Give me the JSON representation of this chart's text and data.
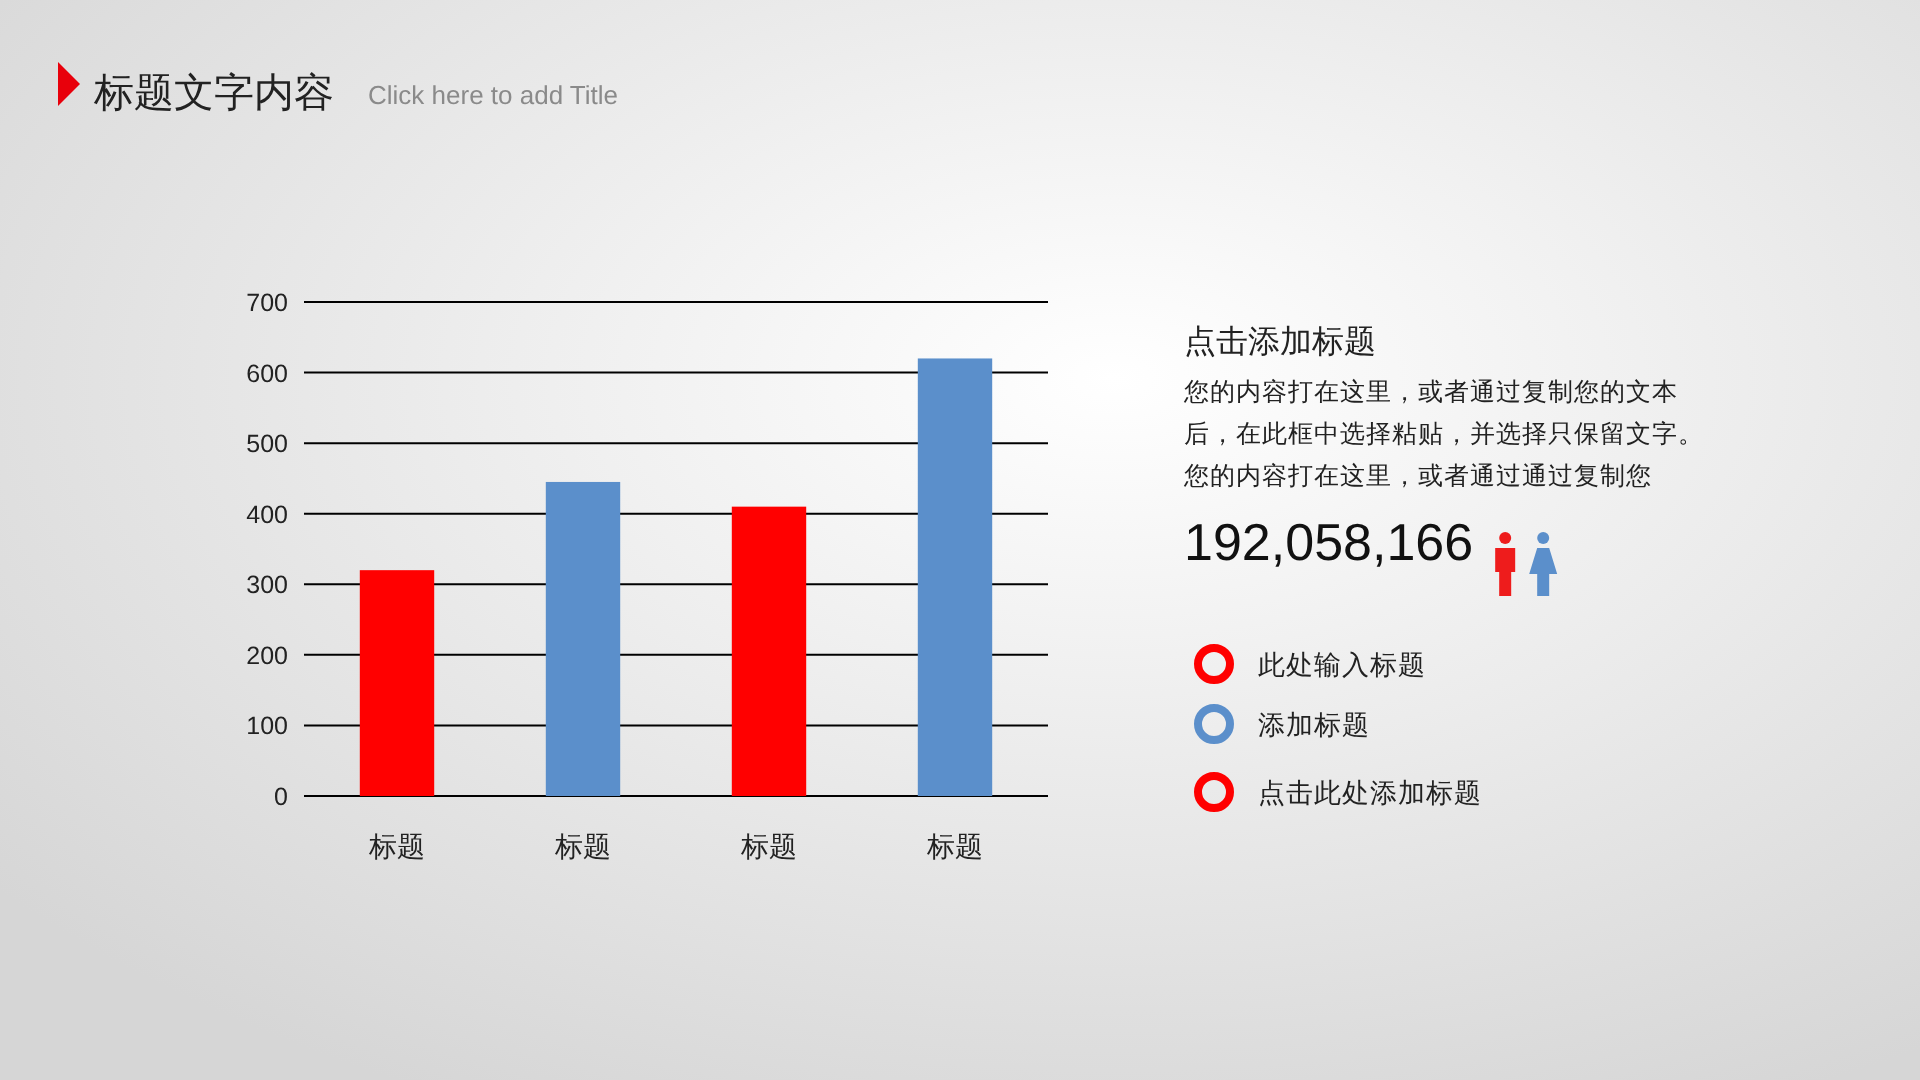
{
  "chart_data": {
    "type": "bar",
    "title": "标题文字内容",
    "subtitle": "Click here to add Title",
    "categories": [
      "标题",
      "标题",
      "标题",
      "标题"
    ],
    "values": [
      320,
      445,
      410,
      620
    ],
    "colors": [
      "#ff0000",
      "#5b8fcb",
      "#ff0000",
      "#5b8fcb"
    ],
    "ylim": [
      0,
      700
    ],
    "yticks": [
      0,
      100,
      200,
      300,
      400,
      500,
      600,
      700
    ],
    "grid": "y",
    "annotations": [
      "点击添加标题",
      "您的内容打在这里，或者通过复制您的文本",
      "后，在此框中选择粘贴，并选择只保留文字。",
      "您的内容打在这里，或者通过通过复制您",
      "192,058,166",
      "此处输入标题",
      "添加标题",
      "点击此处添加标题"
    ]
  }
}
